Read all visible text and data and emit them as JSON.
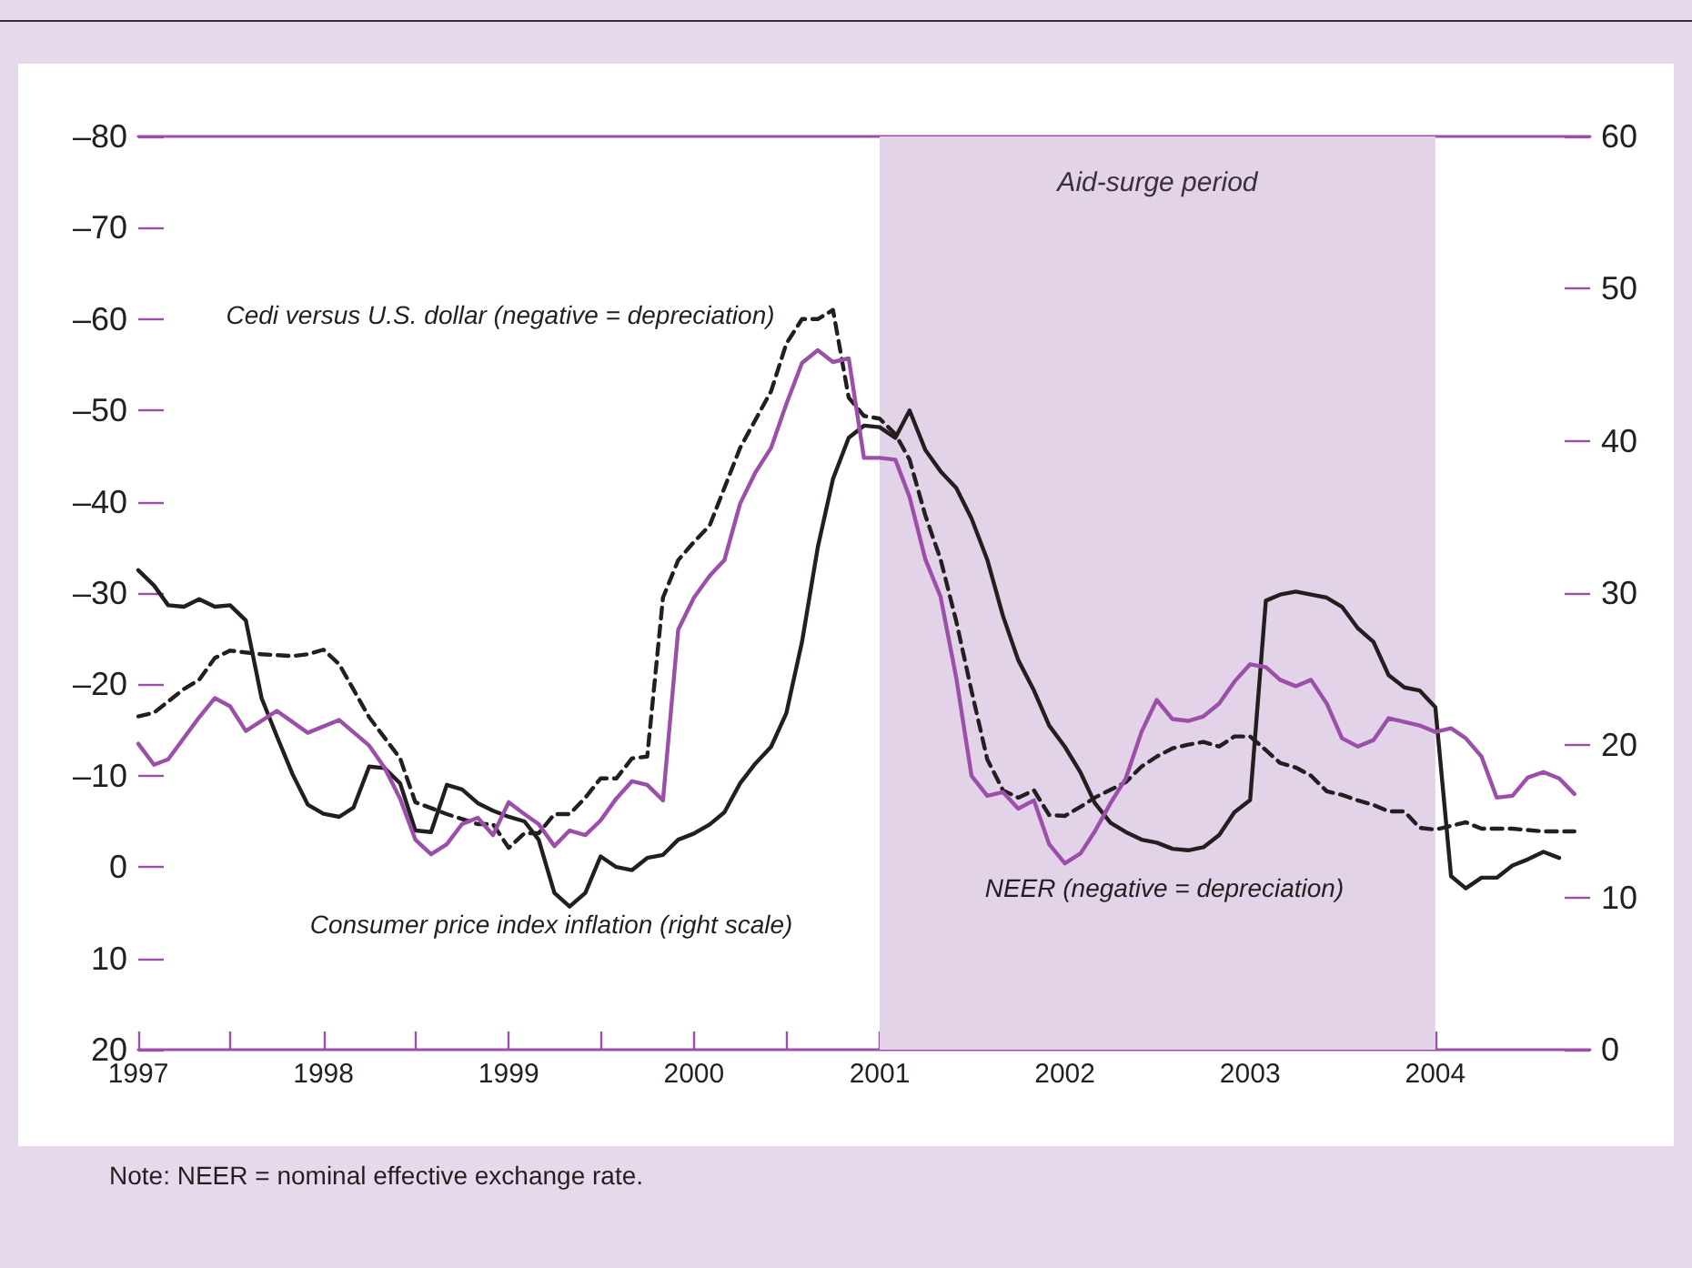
{
  "chart_data": {
    "type": "line",
    "x": [
      "1997-01",
      "1997-02",
      "1997-03",
      "1997-04",
      "1997-05",
      "1997-06",
      "1997-07",
      "1997-08",
      "1997-09",
      "1997-10",
      "1997-11",
      "1997-12",
      "1998-01",
      "1998-02",
      "1998-03",
      "1998-04",
      "1998-05",
      "1998-06",
      "1998-07",
      "1998-08",
      "1998-09",
      "1998-10",
      "1998-11",
      "1998-12",
      "1999-01",
      "1999-02",
      "1999-03",
      "1999-04",
      "1999-05",
      "1999-06",
      "1999-07",
      "1999-08",
      "1999-09",
      "1999-10",
      "1999-11",
      "1999-12",
      "2000-01",
      "2000-02",
      "2000-03",
      "2000-04",
      "2000-05",
      "2000-06",
      "2000-07",
      "2000-08",
      "2000-09",
      "2000-10",
      "2000-11",
      "2000-12",
      "2001-01",
      "2001-02",
      "2001-03",
      "2001-04",
      "2001-05",
      "2001-06",
      "2001-07",
      "2001-08",
      "2001-09",
      "2001-10",
      "2001-11",
      "2001-12",
      "2002-01",
      "2002-02",
      "2002-03",
      "2002-04",
      "2002-05",
      "2002-06",
      "2002-07",
      "2002-08",
      "2002-09",
      "2002-10",
      "2002-11",
      "2002-12",
      "2003-01",
      "2003-02",
      "2003-03",
      "2003-04",
      "2003-05",
      "2003-06",
      "2003-07",
      "2003-08",
      "2003-09",
      "2003-10",
      "2003-11",
      "2003-12",
      "2004-01",
      "2004-02",
      "2004-03",
      "2004-04",
      "2004-05",
      "2004-06",
      "2004-07",
      "2004-08",
      "2004-09"
    ],
    "series": [
      {
        "color": "#231f20",
        "axis": "y2",
        "values": [
          31.5,
          30.5,
          29.2,
          29.1,
          29.6,
          29.1,
          29.2,
          28.2,
          23.1,
          20.6,
          18.1,
          16.1,
          15.5,
          15.3,
          15.9,
          18.6,
          18.5,
          17.5,
          14.4,
          14.3,
          17.4,
          17.1,
          16.2,
          15.7,
          15.3,
          15.0,
          13.8,
          10.3,
          9.4,
          10.3,
          12.7,
          12.0,
          11.8,
          12.6,
          12.8,
          13.8,
          14.2,
          14.8,
          15.6,
          17.5,
          18.8,
          19.9,
          22.1,
          26.8,
          33.0,
          37.5,
          40.2,
          41.0,
          40.9,
          40.2,
          42.0,
          39.4,
          38.0,
          36.9,
          34.9,
          32.2,
          28.5,
          25.6,
          23.6,
          21.3,
          19.9,
          18.2,
          16.2,
          14.9,
          14.3,
          13.8,
          13.6,
          13.2,
          13.1,
          13.3,
          14.1,
          15.6,
          16.4,
          29.5,
          29.9,
          30.1,
          29.9,
          29.7,
          29.1,
          27.7,
          26.8,
          24.6,
          23.8,
          23.6,
          22.5,
          11.4,
          10.6,
          11.3,
          11.3,
          12.1,
          12.5,
          13.0,
          12.6
        ]
      },
      {
        "color": "#231f20",
        "line_style": "dashed",
        "x": [
          "1997-01",
          "1997-02",
          "1997-04",
          "1997-05",
          "1997-06",
          "1997-07",
          "1997-09",
          "1997-11",
          "1997-12",
          "1998-01",
          "1998-02",
          "1998-04",
          "1998-06",
          "1998-07",
          "1998-09",
          "1998-11",
          "1998-12",
          "1999-01",
          "1999-02",
          "1999-03",
          "1999-04",
          "1999-05",
          "1999-06",
          "1999-07",
          "1999-08",
          "1999-09",
          "1999-10",
          "1999-11",
          "1999-12",
          "2000-01",
          "2000-02",
          "2000-04",
          "2000-06",
          "2000-07",
          "2000-08",
          "2000-09",
          "2000-10",
          "2000-11",
          "2000-12",
          "2001-01",
          "2001-02",
          "2001-03",
          "2001-04",
          "2001-05",
          "2001-06",
          "2001-07",
          "2001-08",
          "2001-09",
          "2001-10",
          "2001-11",
          "2001-12",
          "2002-01",
          "2002-02",
          "2002-03",
          "2002-05",
          "2002-06",
          "2002-07",
          "2002-08",
          "2002-09",
          "2002-10",
          "2002-11",
          "2002-12",
          "2003-01",
          "2003-02",
          "2003-03",
          "2003-04",
          "2003-05",
          "2003-06",
          "2003-07",
          "2003-08",
          "2003-09",
          "2003-10",
          "2003-11",
          "2003-12",
          "2004-01",
          "2004-03",
          "2004-04",
          "2004-06",
          "2004-08",
          "2004-10"
        ],
        "values": [
          -16.5,
          -16.9,
          -19.5,
          -20.5,
          -22.9,
          -23.7,
          -23.3,
          -23.1,
          -23.3,
          -23.8,
          -22.2,
          -16.4,
          -11.9,
          -7.1,
          -5.8,
          -4.7,
          -4.7,
          -2.1,
          -3.7,
          -3.7,
          -5.8,
          -5.8,
          -7.6,
          -9.7,
          -9.7,
          -11.9,
          -12.1,
          -29.5,
          -33.6,
          -35.6,
          -37.4,
          -45.9,
          -52.1,
          -57.3,
          -60.0,
          -60.0,
          -61.0,
          -51.4,
          -49.4,
          -49.1,
          -47.4,
          -44.6,
          -38.5,
          -33.7,
          -26.9,
          -19.3,
          -11.8,
          -8.4,
          -7.6,
          -8.4,
          -5.7,
          -5.6,
          -6.6,
          -7.6,
          -9.3,
          -11.0,
          -12.1,
          -13.0,
          -13.4,
          -13.7,
          -13.2,
          -14.3,
          -14.3,
          -12.8,
          -11.4,
          -10.9,
          -10.0,
          -8.3,
          -7.9,
          -7.3,
          -6.8,
          -6.1,
          -6.1,
          -4.3,
          -4.1,
          -4.9,
          -4.2,
          -4.2,
          -3.9,
          -3.9
        ]
      },
      {
        "color": "#9b4fa9",
        "x": [
          "1997-01",
          "1997-02",
          "1997-03",
          "1997-05",
          "1997-06",
          "1997-07",
          "1997-08",
          "1997-10",
          "1997-12",
          "1998-02",
          "1998-04",
          "1998-05",
          "1998-06",
          "1998-07",
          "1998-08",
          "1998-09",
          "1998-10",
          "1998-11",
          "1998-12",
          "1999-01",
          "1999-02",
          "1999-03",
          "1999-04",
          "1999-05",
          "1999-06",
          "1999-07",
          "1999-08",
          "1999-09",
          "1999-10",
          "1999-11",
          "1999-12",
          "2000-01",
          "2000-02",
          "2000-03",
          "2000-04",
          "2000-05",
          "2000-06",
          "2000-07",
          "2000-08",
          "2000-09",
          "2000-10",
          "2000-11",
          "2000-12",
          "2001-01",
          "2001-02",
          "2001-03",
          "2001-04",
          "2001-05",
          "2001-06",
          "2001-07",
          "2001-08",
          "2001-09",
          "2001-10",
          "2001-11",
          "2001-12",
          "2002-01",
          "2002-02",
          "2002-03",
          "2002-04",
          "2002-05",
          "2002-06",
          "2002-07",
          "2002-08",
          "2002-09",
          "2002-10",
          "2002-11",
          "2002-12",
          "2003-01",
          "2003-02",
          "2003-03",
          "2003-04",
          "2003-05",
          "2003-06",
          "2003-07",
          "2003-08",
          "2003-09",
          "2003-10",
          "2003-11",
          "2003-12",
          "2004-01",
          "2004-02",
          "2004-03",
          "2004-04",
          "2004-05",
          "2004-06",
          "2004-07",
          "2004-08",
          "2004-09",
          "2004-10"
        ],
        "values": [
          -13.5,
          -11.2,
          -11.8,
          -16.4,
          -18.5,
          -17.6,
          -14.9,
          -17.1,
          -14.7,
          -16.1,
          -13.3,
          -10.9,
          -7.5,
          -3.0,
          -1.4,
          -2.5,
          -4.7,
          -5.4,
          -3.5,
          -7.1,
          -5.8,
          -4.7,
          -2.3,
          -4.0,
          -3.5,
          -5.1,
          -7.5,
          -9.4,
          -9.0,
          -7.3,
          -26.0,
          -29.5,
          -31.9,
          -33.6,
          -39.8,
          -43.2,
          -45.9,
          -50.7,
          -55.2,
          -56.6,
          -55.3,
          -55.7,
          -44.8,
          -44.8,
          -44.6,
          -40.5,
          -33.7,
          -29.6,
          -20.7,
          -10.0,
          -7.8,
          -8.2,
          -6.4,
          -7.3,
          -2.5,
          -0.4,
          -1.5,
          -3.9,
          -7.0,
          -9.7,
          -14.8,
          -18.3,
          -16.2,
          -16.0,
          -16.5,
          -17.9,
          -20.3,
          -22.2,
          -21.9,
          -20.5,
          -19.8,
          -20.5,
          -17.9,
          -14.1,
          -13.2,
          -13.9,
          -16.3,
          -15.9,
          -15.5,
          -14.8,
          -15.2,
          -14.1,
          -12.1,
          -7.6,
          -7.8,
          -9.8,
          -10.4,
          -9.7,
          -8.0
        ]
      }
    ],
    "xlim": [
      "1997-01",
      "2004-11"
    ],
    "xticks": [
      {
        "value": "1997",
        "label": "1997"
      },
      {
        "value": "1997-07",
        "label": null
      },
      {
        "value": "1998",
        "label": "1998"
      },
      {
        "value": "1998-07",
        "label": null
      },
      {
        "value": "1999",
        "label": "1999"
      },
      {
        "value": "1999-07",
        "label": null
      },
      {
        "value": "2000",
        "label": "2000"
      },
      {
        "value": "2000-07",
        "label": null
      },
      {
        "value": "2001",
        "label": "2001"
      },
      {
        "value": "2001-07",
        "label": null
      },
      {
        "value": "2002",
        "label": "2002"
      },
      {
        "value": "2002-07",
        "label": null
      },
      {
        "value": "2003",
        "label": "2003"
      },
      {
        "value": "2003-07",
        "label": null
      },
      {
        "value": "2004",
        "label": "2004"
      }
    ],
    "ylim": [
      20,
      -80
    ],
    "yticks": [
      {
        "value": -80,
        "label": "–80"
      },
      {
        "value": -70,
        "label": "–70"
      },
      {
        "value": -60,
        "label": "–60"
      },
      {
        "value": -50,
        "label": "–50"
      },
      {
        "value": -40,
        "label": "–40"
      },
      {
        "value": -30,
        "label": "–30"
      },
      {
        "value": -20,
        "label": "–20"
      },
      {
        "value": -10,
        "label": "–10"
      },
      0,
      10,
      20
    ],
    "y2lim": [
      0,
      60
    ],
    "y2ticks": [
      0,
      10,
      20,
      30,
      40,
      50,
      60
    ],
    "bands": [
      {
        "axis": "x",
        "from": "2001-01",
        "to": "2004-01",
        "label": "Aid-surge period",
        "color": "#e2d3e8"
      }
    ],
    "annotations": [
      "Cedi versus U.S. dollar (negative = depreciation)",
      "NEER (negative = depreciation)",
      "Consumer price index inflation (right scale)",
      "Note: NEER = nominal effective exchange rate."
    ],
    "marker": "none",
    "grid": false
  }
}
